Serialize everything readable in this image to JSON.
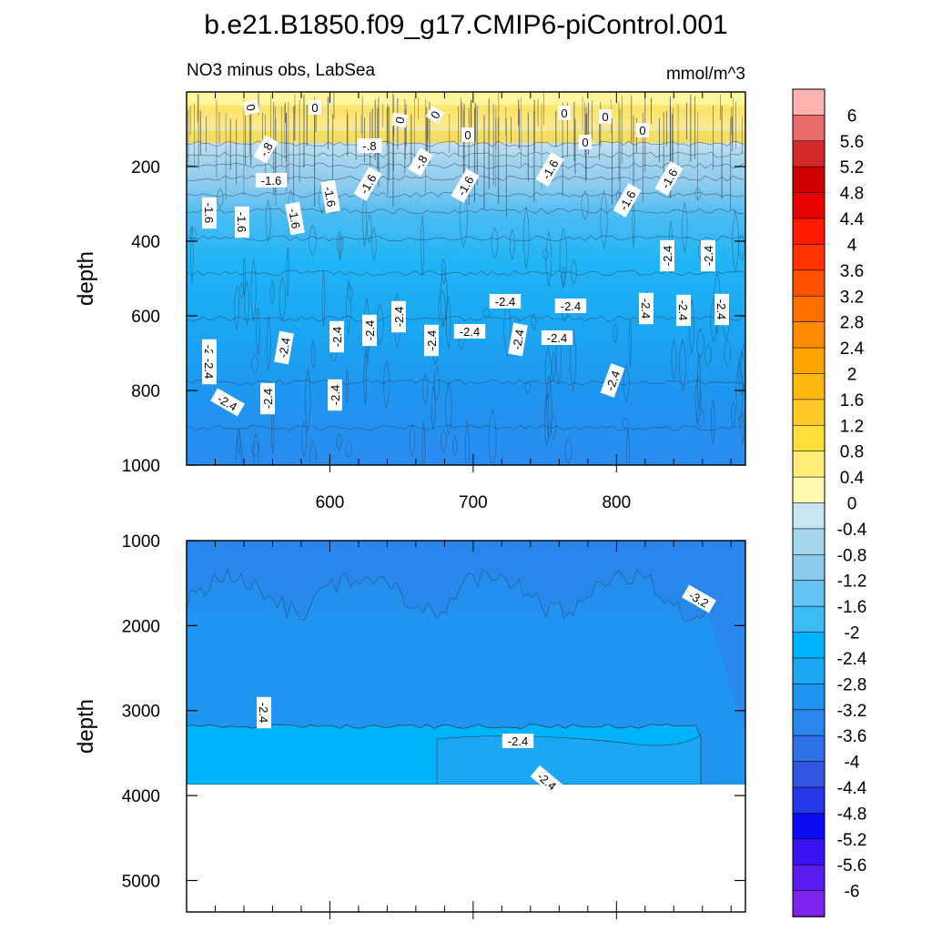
{
  "chart_data": {
    "type": "heatmap",
    "title": "b.e21.B1850.f09_g17.CMIP6-piControl.001",
    "subtitle_left": "NO3 minus obs, LabSea",
    "subtitle_right": "mmol/m^3",
    "colors": {
      "fill_0_to_minus_0_4": "#c8e4f2",
      "fill_band_light": "#a6d5ee",
      "fill_minus_0_8": "#8ccbee",
      "fill_minus_1_6": "#4cbcf2",
      "fill_minus_2": "#21b5f6",
      "fill_minus_2_4": "#1ba7f3",
      "fill_minus_2_8": "#1f95f0",
      "fill_minus_3_2": "#2a86ec",
      "fill_deep_cyan": "#00b2f7",
      "surface_yellow": "#fff59d",
      "surface_yellow_dark": "#fddc3c",
      "contour_line": "#2b3b52"
    },
    "panels": [
      {
        "name": "upper",
        "ylabel": "depth",
        "ylim": [
          1000,
          0
        ],
        "y_ticks": [
          "200",
          "400",
          "600",
          "800",
          "1000"
        ],
        "x_ticks": [
          "600",
          "700",
          "800"
        ],
        "contour_labels": [
          "0",
          "0",
          "0",
          "0",
          "0",
          "0",
          "0",
          "0",
          "0",
          "-.8",
          "-.8",
          "-.8",
          "-1.6",
          "-1.6",
          "-1.6",
          "-1.6",
          "-1.6",
          "-1.6",
          "-1.6",
          "-1.6",
          "-1.6",
          "-1.6",
          "-2.4",
          "-2.4",
          "-2.4",
          "-2.4",
          "-2.4",
          "-2.4",
          "-2.4",
          "-2.4",
          "-2.4",
          "-2.4",
          "-2.4",
          "-2.4",
          "-2.4",
          "-2.4",
          "-2.4",
          "-2.4",
          "-2.4",
          "-2.4",
          "-2.4",
          "-2.4",
          "-2.4"
        ]
      },
      {
        "name": "lower",
        "ylabel": "depth",
        "ylim": [
          5400,
          1000
        ],
        "y_ticks": [
          "1000",
          "2000",
          "3000",
          "4000",
          "5000"
        ],
        "x_ticks": [],
        "bottom_depth": 3850,
        "contour_labels": [
          "-3.2",
          "-2.4",
          "-2.4",
          "-2.4"
        ]
      }
    ],
    "x_ticks_numeric": [
      600,
      700,
      800
    ],
    "xlim": [
      500,
      890
    ],
    "colorbar": {
      "levels": [
        "6",
        "5.6",
        "5.2",
        "4.8",
        "4.4",
        "4",
        "3.6",
        "3.2",
        "2.8",
        "2.4",
        "2",
        "1.6",
        "1.2",
        "0.8",
        "0.4",
        "0",
        "-0.4",
        "-0.8",
        "-1.2",
        "-1.6",
        "-2",
        "-2.4",
        "-2.8",
        "-3.2",
        "-3.6",
        "-4",
        "-4.4",
        "-4.8",
        "-5.2",
        "-5.6",
        "-6"
      ],
      "colors": [
        "#ffb3b3",
        "#e86a6a",
        "#d22a2a",
        "#cf0000",
        "#e80000",
        "#ff1a00",
        "#ff3300",
        "#ff5200",
        "#ff6e00",
        "#ff8c00",
        "#ffa500",
        "#ffb812",
        "#ffcb2a",
        "#ffe03a",
        "#ffef7a",
        "#fff9b0",
        "#c8e4f2",
        "#a6d5ee",
        "#8ccbee",
        "#63c4f2",
        "#3cbbf5",
        "#00b2f7",
        "#1ba7f3",
        "#1f95f0",
        "#2a86ec",
        "#2f72e6",
        "#3157e0",
        "#2637e8",
        "#0a0bf0",
        "#3a11f0",
        "#5a1cee",
        "#7c22ea"
      ]
    }
  }
}
